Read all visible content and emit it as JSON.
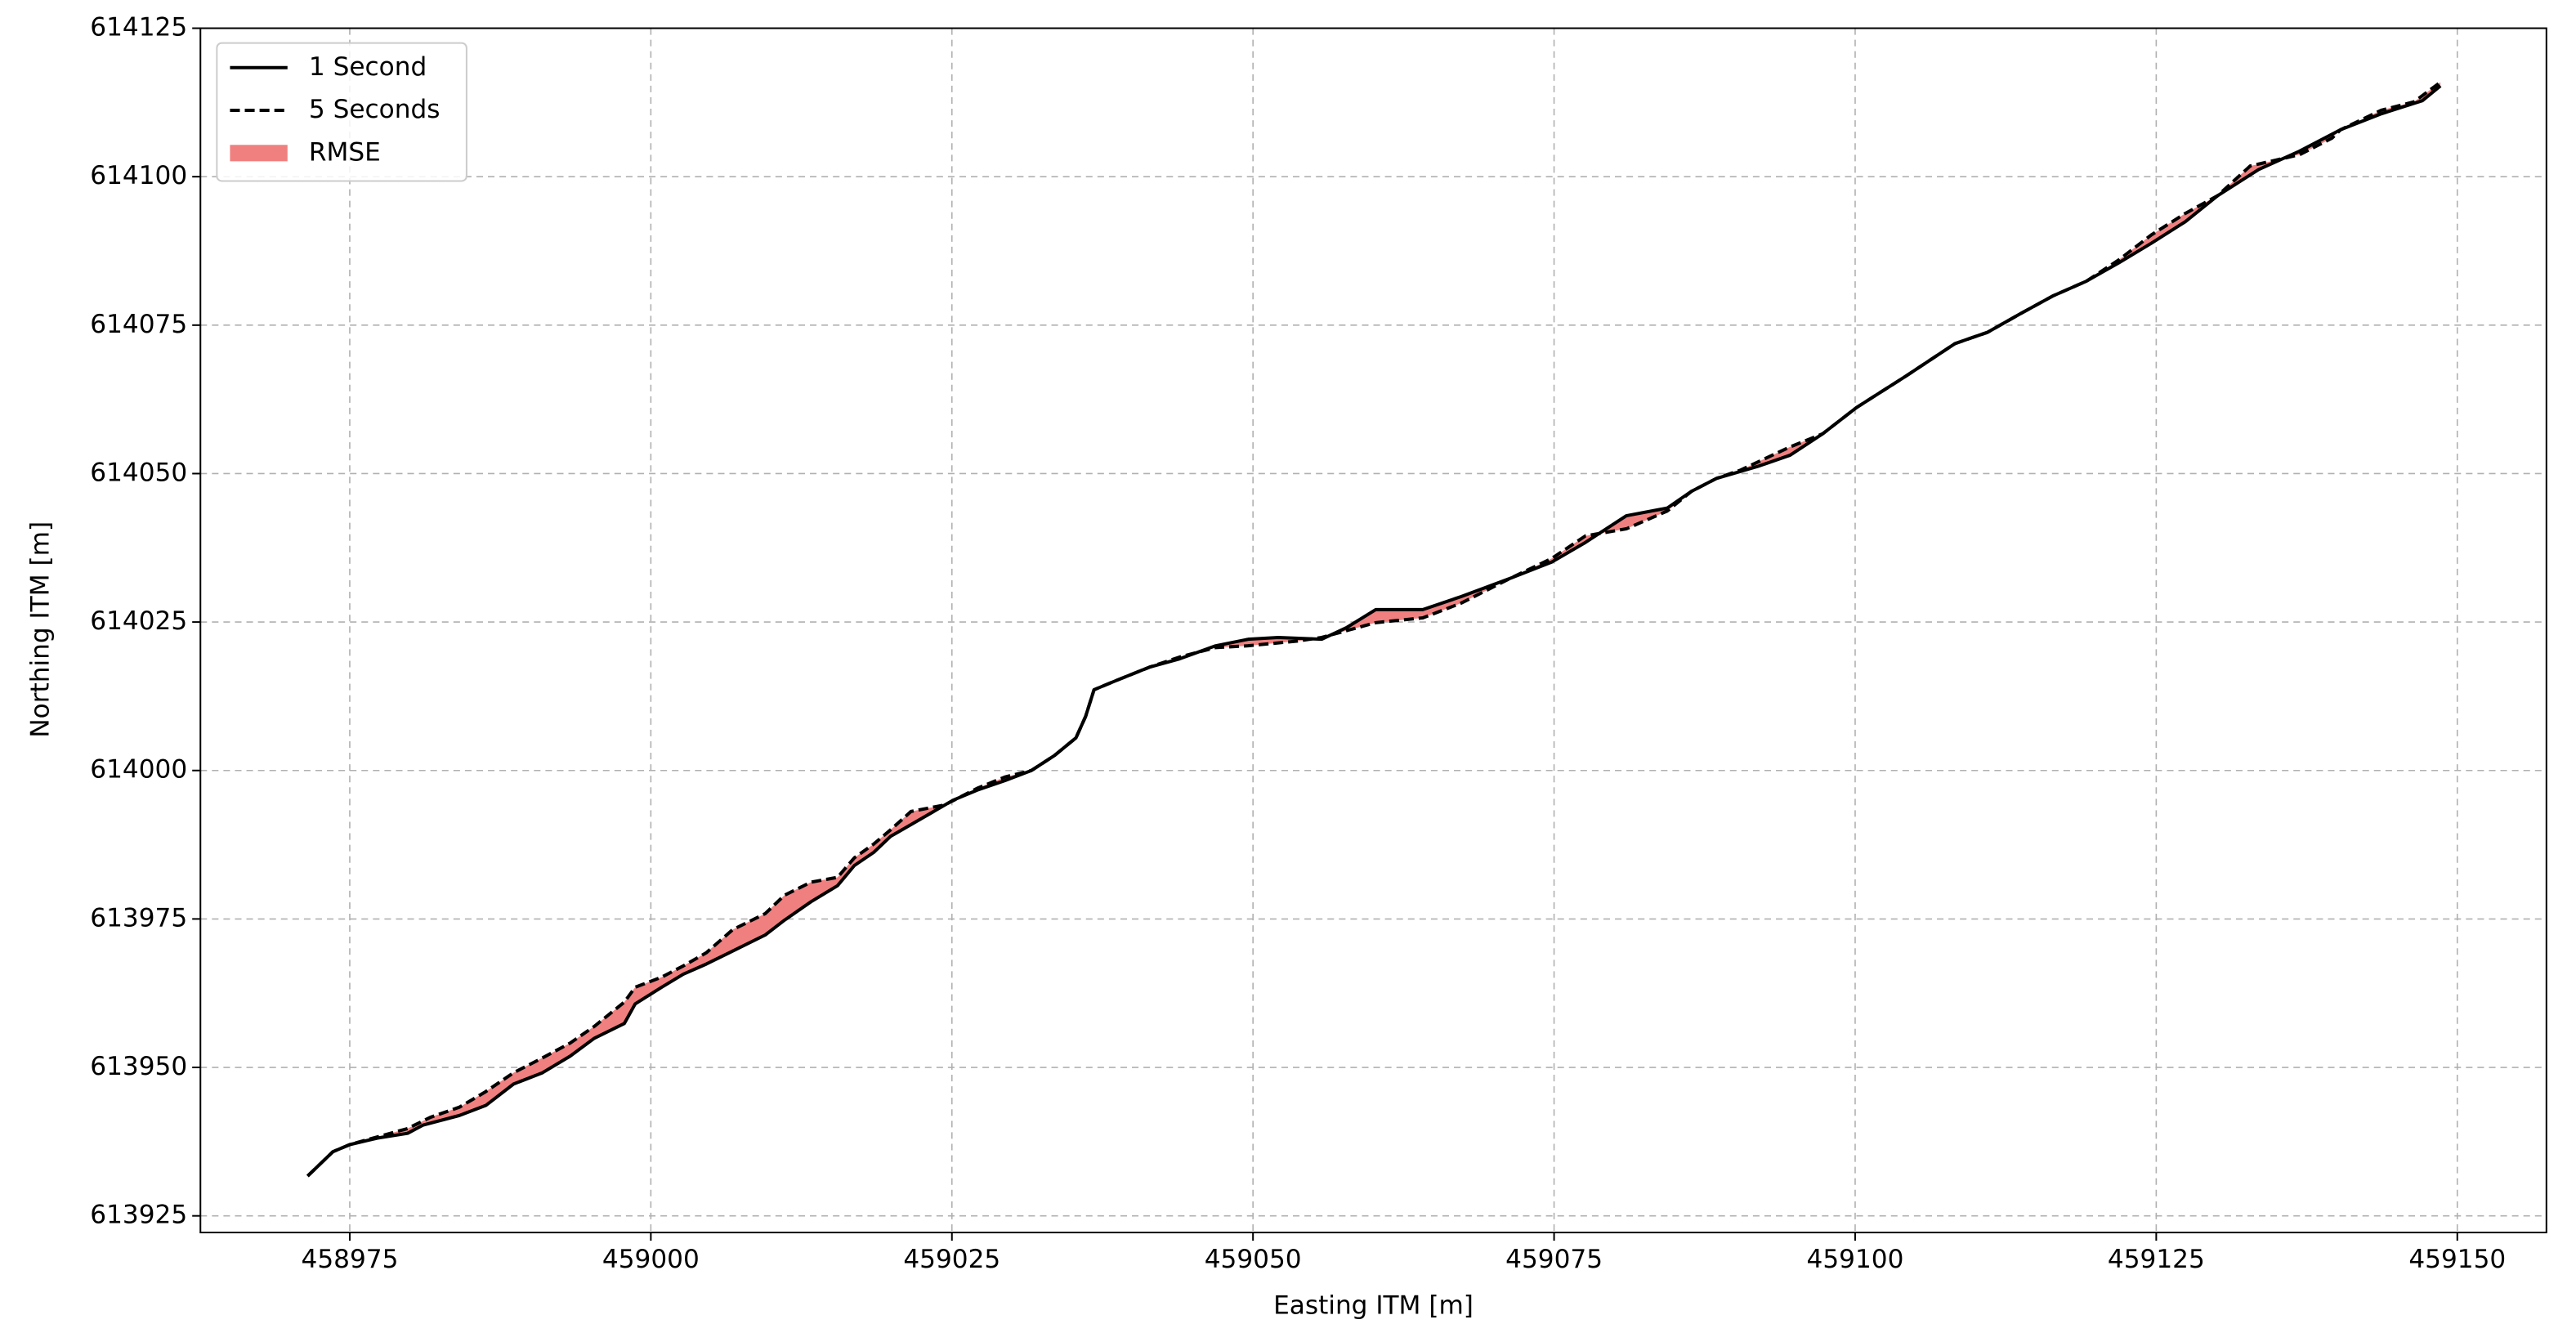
{
  "chart_data": {
    "type": "line",
    "xlabel": "Easting ITM [m]",
    "ylabel": "Northing ITM [m]",
    "xlim": [
      458962.6,
      459157.4
    ],
    "ylim": [
      613922.2,
      614125
    ],
    "xticks": [
      458975,
      459000,
      459025,
      459050,
      459075,
      459100,
      459125,
      459150
    ],
    "yticks": [
      613925,
      613950,
      613975,
      614000,
      614025,
      614050,
      614075,
      614100,
      614125
    ],
    "grid": true,
    "legend": "upper left",
    "series": [
      {
        "name": "1 Second",
        "color": "#000000",
        "dash": "solid",
        "x": [
          458971.5,
          458973.6,
          458975.0,
          458977.3,
          458979.8,
          458981.1,
          458984.1,
          458986.3,
          458988.6,
          458991.0,
          458993.3,
          458995.3,
          458997.8,
          458998.7,
          459000.9,
          459002.7,
          459004.6,
          459007.1,
          459009.5,
          459011.1,
          459013.3,
          459015.5,
          459016.9,
          459018.5,
          459019.9,
          459022.3,
          459025.1,
          459027.1,
          459029.4,
          459031.6,
          459033.5,
          459035.3,
          459036.1,
          459036.8,
          459038.7,
          459041.4,
          459043.9,
          459046.9,
          459049.6,
          459052.1,
          459055.7,
          459057.8,
          459060.2,
          459064.1,
          459067.3,
          459071.4,
          459074.8,
          459077.6,
          459081.0,
          459084.4,
          459086.4,
          459088.5,
          459091.9,
          459094.6,
          459097.3,
          459100.1,
          459104.2,
          459108.3,
          459111.0,
          459113.7,
          459116.4,
          459119.2,
          459121.9,
          459124.6,
          459127.4,
          459130.1,
          459133.5,
          459136.9,
          459140.3,
          459143.7,
          459147.1,
          459148.6
        ],
        "y": [
          613931.7,
          613935.8,
          613937.0,
          613938.1,
          613938.9,
          613940.3,
          613941.9,
          613943.6,
          613947.2,
          613949.1,
          613951.9,
          613954.9,
          613957.4,
          613960.7,
          613963.5,
          613965.7,
          613967.4,
          613969.9,
          613972.3,
          613974.8,
          613977.9,
          613980.6,
          613984.0,
          613986.2,
          613988.9,
          613991.7,
          613995.0,
          613996.7,
          613998.3,
          614000.0,
          614002.5,
          614005.5,
          614009.1,
          614013.6,
          614015.2,
          614017.4,
          614018.8,
          614021.0,
          614022.1,
          614022.4,
          614022.1,
          614024.1,
          614027.1,
          614027.1,
          614029.3,
          614032.4,
          614035.1,
          614038.4,
          614042.9,
          614044.2,
          614047.0,
          614049.2,
          614051.2,
          614053.1,
          614056.7,
          614061.1,
          614066.4,
          614071.9,
          614073.8,
          614076.9,
          614079.9,
          614082.4,
          614085.5,
          614088.8,
          614092.4,
          614096.8,
          614101.2,
          614104.3,
          614107.9,
          614110.6,
          614112.8,
          614115.3
        ]
      },
      {
        "name": "5 Seconds",
        "color": "#000000",
        "dash": "dashed",
        "x": [
          458971.5,
          458973.6,
          458975.0,
          458977.3,
          458979.8,
          458981.7,
          458984.1,
          458986.2,
          458988.6,
          458991.0,
          458993.3,
          458995.3,
          458997.8,
          458998.7,
          459000.9,
          459002.7,
          459004.6,
          459006.8,
          459009.5,
          459011.1,
          459013.3,
          459015.5,
          459016.9,
          459018.5,
          459019.9,
          459021.6,
          459024.4,
          459027.1,
          459029.4,
          459031.6,
          459033.5,
          459035.3,
          459036.1,
          459036.8,
          459038.7,
          459041.4,
          459043.9,
          459046.9,
          459049.6,
          459053.7,
          459055.7,
          459060.2,
          459064.1,
          459067.3,
          459071.4,
          459074.8,
          459077.6,
          459081.0,
          459084.4,
          459086.4,
          459088.5,
          459090.5,
          459094.6,
          459097.3,
          459100.1,
          459104.2,
          459108.3,
          459111.0,
          459113.7,
          459116.4,
          459119.2,
          459121.9,
          459124.6,
          459127.4,
          459130.1,
          459132.8,
          459136.9,
          459139.6,
          459140.3,
          459143.7,
          459146.4,
          459148.6
        ],
        "y": [
          613931.7,
          613935.8,
          613937.0,
          613938.3,
          613939.7,
          613941.6,
          613943.3,
          613945.8,
          613949.1,
          613951.6,
          613954.1,
          613956.9,
          613961.0,
          613963.5,
          613965.2,
          613967.1,
          613969.3,
          613973.2,
          613975.9,
          613979.0,
          613981.2,
          613982.0,
          613985.3,
          613987.6,
          613990.0,
          613993.1,
          613994.2,
          613997.0,
          613998.9,
          614000.0,
          614002.5,
          614005.5,
          614009.1,
          614013.6,
          614015.2,
          614017.4,
          614019.1,
          614020.7,
          614021.0,
          614021.8,
          614022.4,
          614024.9,
          614025.7,
          614028.2,
          614032.4,
          614035.7,
          614039.5,
          614040.7,
          614043.7,
          614047.0,
          614049.2,
          614050.6,
          614054.5,
          614056.7,
          614061.1,
          614066.4,
          614071.9,
          614073.8,
          614076.9,
          614079.9,
          614082.4,
          614086.0,
          614090.2,
          614093.8,
          614096.8,
          614101.8,
          614103.7,
          614106.5,
          614107.9,
          614111.2,
          614112.6,
          614115.9
        ]
      }
    ],
    "fill": {
      "name": "RMSE",
      "color": "#f08080"
    }
  }
}
